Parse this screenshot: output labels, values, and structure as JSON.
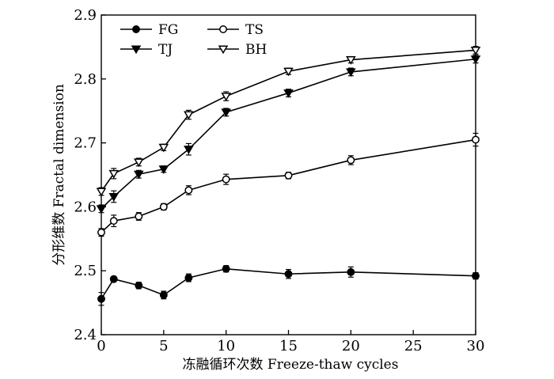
{
  "chart_data": {
    "type": "line",
    "title": "",
    "xlabel": "冻融循环次数 Freeze-thaw cycles",
    "ylabel": "分形维数  Fractal dimension",
    "xlim": [
      0,
      30
    ],
    "ylim": [
      2.4,
      2.9
    ],
    "xticks": [
      0,
      5,
      10,
      15,
      20,
      25,
      30
    ],
    "xtick_labels": [
      "0",
      "5",
      "10",
      "15",
      "20",
      "25",
      "30"
    ],
    "yticks": [
      2.4,
      2.5,
      2.6,
      2.7,
      2.8,
      2.9
    ],
    "ytick_labels": [
      "2.4",
      "2.5",
      "2.6",
      "2.7",
      "2.8",
      "2.9"
    ],
    "x": [
      0,
      1,
      3,
      5,
      7,
      10,
      15,
      20,
      30
    ],
    "legend_position": "top-left",
    "series": [
      {
        "name": "FG",
        "marker": "circle-filled",
        "values": [
          2.456,
          2.487,
          2.477,
          2.462,
          2.489,
          2.503,
          2.495,
          2.498,
          2.492
        ],
        "errors": [
          0.01,
          0.004,
          0.005,
          0.006,
          0.006,
          0.005,
          0.007,
          0.008,
          0.005
        ]
      },
      {
        "name": "TS",
        "marker": "circle-open",
        "values": [
          2.56,
          2.578,
          2.585,
          2.6,
          2.626,
          2.643,
          2.649,
          2.673,
          2.705
        ],
        "errors": [
          0.006,
          0.009,
          0.006,
          0.005,
          0.007,
          0.008,
          0.005,
          0.007,
          0.01
        ]
      },
      {
        "name": "TJ",
        "marker": "triangle-down-filled",
        "values": [
          2.597,
          2.616,
          2.651,
          2.659,
          2.69,
          2.748,
          2.778,
          2.811,
          2.831
        ],
        "errors": [
          0.006,
          0.009,
          0.006,
          0.005,
          0.009,
          0.006,
          0.006,
          0.006,
          0.006
        ]
      },
      {
        "name": "BH",
        "marker": "triangle-down-open",
        "values": [
          2.624,
          2.652,
          2.67,
          2.693,
          2.744,
          2.773,
          2.812,
          2.83,
          2.845
        ],
        "errors": [
          0.006,
          0.008,
          0.006,
          0.005,
          0.007,
          0.007,
          0.005,
          0.005,
          0.006
        ]
      }
    ]
  }
}
